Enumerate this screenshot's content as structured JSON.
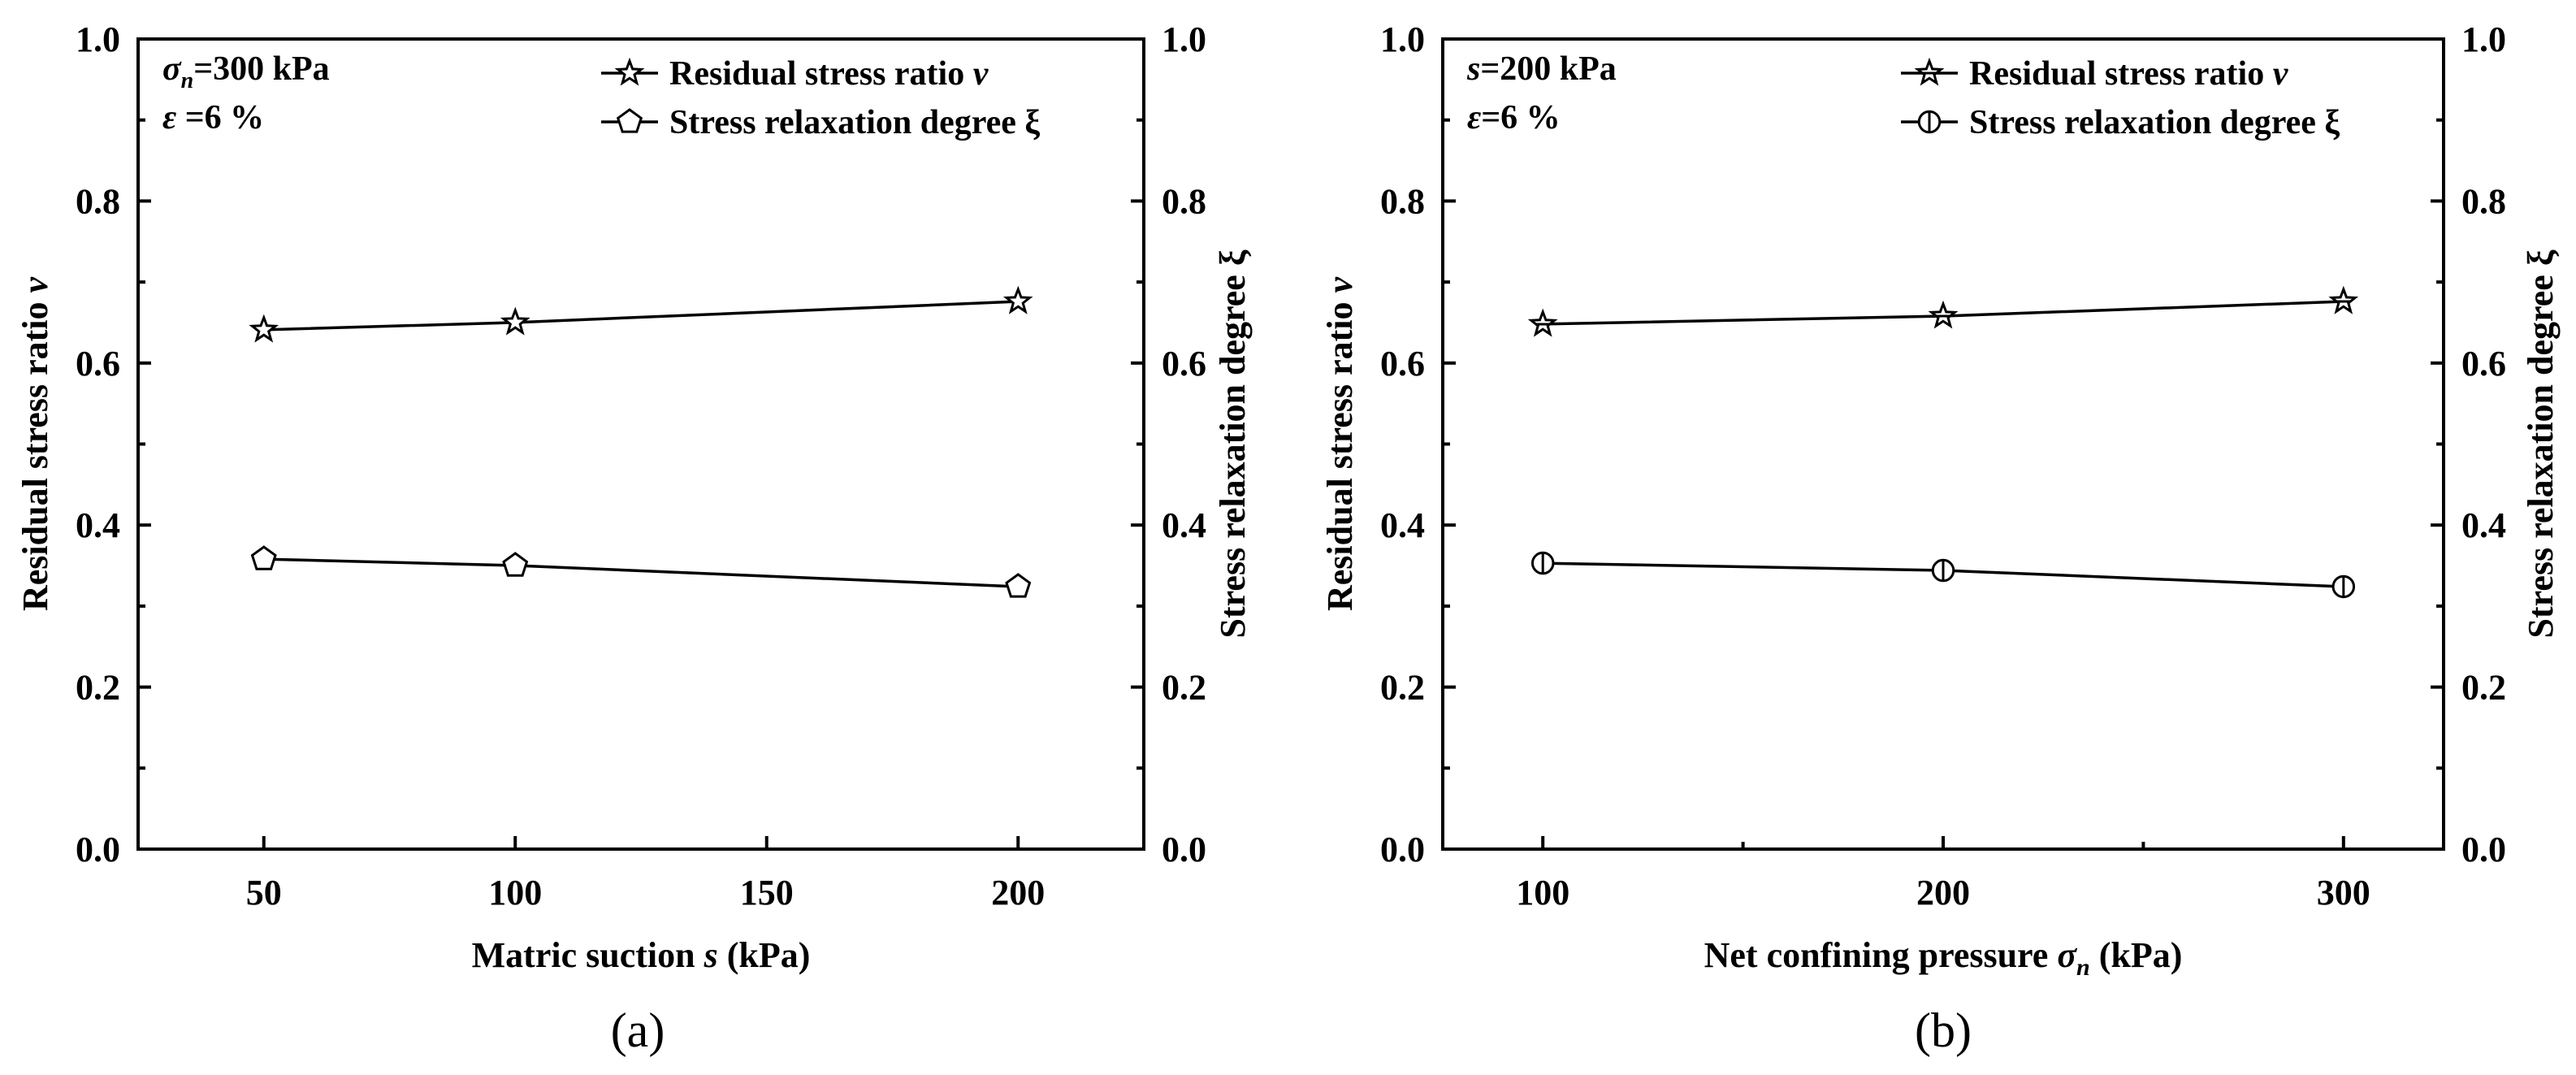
{
  "chart_data": [
    {
      "type": "line",
      "panel_label": "(a)",
      "x": [
        50,
        100,
        200
      ],
      "xlim": [
        25,
        225
      ],
      "x_ticks": [
        50,
        100,
        150,
        200
      ],
      "xlabel": "Matric suction s (kPa)",
      "xlabel_parts": {
        "pre": "Matric suction ",
        "var": "s",
        "post": " (kPa)"
      },
      "ylabel": "Residual stress ratio v",
      "ylabel_parts": {
        "pre": "Residual stress ratio ",
        "var": "v"
      },
      "y2label": "Stress relaxation degree ξ",
      "ylim": [
        0,
        1.0
      ],
      "y_ticks": [
        "0.0",
        "0.2",
        "0.4",
        "0.6",
        "0.8",
        "1.0"
      ],
      "annotations": [
        {
          "sym": "σ",
          "sub": "n",
          "rest": "=300 kPa"
        },
        {
          "sym": "ε",
          "sub": "",
          "rest": " =6 %"
        }
      ],
      "legend": [
        {
          "pre": "Residual stress ratio ",
          "var": "v",
          "marker": "star"
        },
        {
          "pre": "Stress relaxation degree ξ",
          "var": "",
          "marker": "pentagon"
        }
      ],
      "series": [
        {
          "name": "Residual stress ratio v",
          "marker": "star",
          "values": [
            0.641,
            0.65,
            0.676
          ]
        },
        {
          "name": "Stress relaxation degree ξ",
          "marker": "pentagon",
          "values": [
            0.358,
            0.35,
            0.324
          ]
        }
      ]
    },
    {
      "type": "line",
      "panel_label": "(b)",
      "x": [
        100,
        200,
        300
      ],
      "xlim": [
        75,
        325
      ],
      "x_ticks": [
        100,
        200,
        300
      ],
      "x_minor_ticks": [
        150,
        250
      ],
      "xlabel": "Net confining pressure σn (kPa)",
      "xlabel_parts": {
        "pre": "Net confining pressure ",
        "var": "σ",
        "sub": "n",
        "post": " (kPa)"
      },
      "ylabel": "Residual stress ratio v",
      "ylabel_parts": {
        "pre": "Residual stress ratio ",
        "var": "v"
      },
      "y2label": "Stress relaxation degree ξ",
      "ylim": [
        0,
        1.0
      ],
      "y_ticks": [
        "0.0",
        "0.2",
        "0.4",
        "0.6",
        "0.8",
        "1.0"
      ],
      "annotations": [
        {
          "sym": "s",
          "sub": "",
          "rest": "=200 kPa"
        },
        {
          "sym": "ε",
          "sub": "",
          "rest": "=6 %"
        }
      ],
      "legend": [
        {
          "pre": "Residual stress ratio ",
          "var": "v",
          "marker": "star-cross"
        },
        {
          "pre": "Stress relaxation degree ξ",
          "var": "",
          "marker": "half-circle"
        }
      ],
      "series": [
        {
          "name": "Residual stress ratio v",
          "marker": "star-cross",
          "values": [
            0.648,
            0.658,
            0.676
          ]
        },
        {
          "name": "Stress relaxation degree ξ",
          "marker": "half-circle",
          "values": [
            0.353,
            0.344,
            0.324
          ]
        }
      ]
    }
  ]
}
